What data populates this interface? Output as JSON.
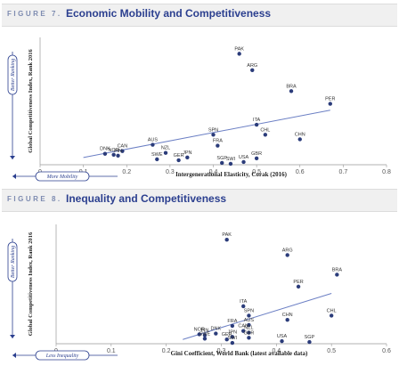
{
  "figures": [
    {
      "label": "FIGURE 7.",
      "title": "Economic Mobility and Competitiveness",
      "better_ranking": "Better Ranking",
      "direction_x": "More Mobility"
    },
    {
      "label": "FIGURE 8.",
      "title": "Inequality and Competitiveness",
      "better_ranking": "Better Ranking",
      "direction_x": "Less Inequality"
    }
  ],
  "colors": {
    "point": "#2b3c7a",
    "trend": "#6b7fc4",
    "axis": "#999999",
    "accent": "#2b3f8f"
  },
  "chart_data": [
    {
      "type": "scatter",
      "title": "Economic Mobility and Competitiveness",
      "xlabel": "Intergenerational Elasticity, Corak (2016)",
      "ylabel": "Global Competitiveness Index, Rank 2016",
      "xlim": [
        0,
        0.8
      ],
      "ylim": [
        0,
        140
      ],
      "x_ticks": [
        "0",
        "0.1",
        "0.2",
        "0.3",
        "0.4",
        "0.5",
        "0.6",
        "0.7",
        "0.8"
      ],
      "grid": false,
      "trendline": [
        [
          0.1,
          8
        ],
        [
          0.67,
          60
        ]
      ],
      "points": [
        {
          "label": "PAK",
          "x": 0.46,
          "y": 122
        },
        {
          "label": "ARG",
          "x": 0.49,
          "y": 104
        },
        {
          "label": "BRA",
          "x": 0.58,
          "y": 81
        },
        {
          "label": "PER",
          "x": 0.67,
          "y": 67
        },
        {
          "label": "ITA",
          "x": 0.5,
          "y": 44
        },
        {
          "label": "CHL",
          "x": 0.52,
          "y": 33
        },
        {
          "label": "CHN",
          "x": 0.6,
          "y": 28
        },
        {
          "label": "SPN",
          "x": 0.4,
          "y": 33
        },
        {
          "label": "FRA",
          "x": 0.41,
          "y": 21
        },
        {
          "label": "GBR",
          "x": 0.5,
          "y": 7
        },
        {
          "label": "USA",
          "x": 0.47,
          "y": 3
        },
        {
          "label": "SGP",
          "x": 0.42,
          "y": 2
        },
        {
          "label": "SWI",
          "x": 0.44,
          "y": 1
        },
        {
          "label": "AUS",
          "x": 0.26,
          "y": 22
        },
        {
          "label": "NZL",
          "x": 0.29,
          "y": 13
        },
        {
          "label": "SWE",
          "x": 0.27,
          "y": 6
        },
        {
          "label": "GER",
          "x": 0.32,
          "y": 5
        },
        {
          "label": "JPN",
          "x": 0.34,
          "y": 8
        },
        {
          "label": "CAN",
          "x": 0.19,
          "y": 15
        },
        {
          "label": "FIN",
          "x": 0.18,
          "y": 10
        },
        {
          "label": "NOR",
          "x": 0.17,
          "y": 11
        },
        {
          "label": "DNK",
          "x": 0.15,
          "y": 12
        }
      ]
    },
    {
      "type": "scatter",
      "title": "Inequality and Competitiveness",
      "xlabel": "Gini Coefficient, World Bank (latest available data)",
      "ylabel": "Global Competitiveness Index, Rank 2016",
      "xlim": [
        0,
        0.6
      ],
      "ylim": [
        0,
        140
      ],
      "x_ticks": [
        "0",
        "0.1",
        "0.2",
        "0.3",
        "0.4",
        "0.5",
        "0.6"
      ],
      "grid": false,
      "trendline": [
        [
          0.23,
          5
        ],
        [
          0.5,
          59
        ]
      ],
      "points": [
        {
          "label": "PAK",
          "x": 0.31,
          "y": 122
        },
        {
          "label": "ARG",
          "x": 0.42,
          "y": 104
        },
        {
          "label": "BRA",
          "x": 0.51,
          "y": 81
        },
        {
          "label": "PER",
          "x": 0.44,
          "y": 67
        },
        {
          "label": "ITA",
          "x": 0.34,
          "y": 44
        },
        {
          "label": "SPN",
          "x": 0.35,
          "y": 33
        },
        {
          "label": "CHL",
          "x": 0.5,
          "y": 33
        },
        {
          "label": "CHN",
          "x": 0.42,
          "y": 28
        },
        {
          "label": "FRA",
          "x": 0.32,
          "y": 21
        },
        {
          "label": "AUS",
          "x": 0.35,
          "y": 22
        },
        {
          "label": "CAN",
          "x": 0.34,
          "y": 15
        },
        {
          "label": "JPN",
          "x": 0.32,
          "y": 8
        },
        {
          "label": "NZL",
          "x": 0.35,
          "y": 13
        },
        {
          "label": "GBR",
          "x": 0.35,
          "y": 7
        },
        {
          "label": "USA",
          "x": 0.41,
          "y": 3
        },
        {
          "label": "SGP",
          "x": 0.46,
          "y": 2
        },
        {
          "label": "SWI",
          "x": 0.32,
          "y": 1
        },
        {
          "label": "DNK",
          "x": 0.29,
          "y": 12
        },
        {
          "label": "NOR",
          "x": 0.26,
          "y": 11
        },
        {
          "label": "FIN",
          "x": 0.27,
          "y": 10
        },
        {
          "label": "SWE",
          "x": 0.27,
          "y": 6
        },
        {
          "label": "GER",
          "x": 0.31,
          "y": 5
        }
      ]
    }
  ]
}
